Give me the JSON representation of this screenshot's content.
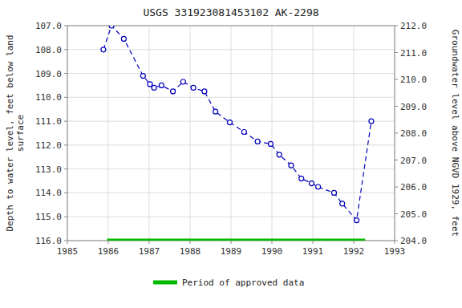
{
  "chart_data": {
    "type": "line",
    "title": "USGS 331923081453102 AK-2298",
    "ylabel": "Depth to water level, feet below land\nsurface",
    "y2label": "Groundwater level above NGVD 1929, feet",
    "xlim": [
      1985,
      1993
    ],
    "xticks": [
      1985,
      1986,
      1987,
      1988,
      1989,
      1990,
      1991,
      1992,
      1993
    ],
    "ylim": [
      116.0,
      107.0
    ],
    "yticks": [
      {
        "value": 107.0,
        "label": "107.0"
      },
      {
        "value": 108.0,
        "label": "108.0"
      },
      {
        "value": 109.0,
        "label": "109.0"
      },
      {
        "value": 110.0,
        "label": "110.0"
      },
      {
        "value": 111.0,
        "label": "111.0"
      },
      {
        "value": 112.0,
        "label": "112.0"
      },
      {
        "value": 113.0,
        "label": "113.0"
      },
      {
        "value": 114.0,
        "label": "114.0"
      },
      {
        "value": 115.0,
        "label": "115.0"
      },
      {
        "value": 116.0,
        "label": "116.0"
      }
    ],
    "y2lim": [
      204.0,
      212.0
    ],
    "y2ticks": [
      {
        "value": 212.0,
        "label": "212.0"
      },
      {
        "value": 211.0,
        "label": "211.0"
      },
      {
        "value": 210.0,
        "label": "210.0"
      },
      {
        "value": 209.0,
        "label": "209.0"
      },
      {
        "value": 208.0,
        "label": "208.0"
      },
      {
        "value": 207.0,
        "label": "207.0"
      },
      {
        "value": 206.0,
        "label": "206.0"
      },
      {
        "value": 205.0,
        "label": "205.0"
      },
      {
        "value": 204.0,
        "label": "204.0"
      }
    ],
    "grid": true,
    "legend": "bottom",
    "series": [
      {
        "color": "#0000bb",
        "line_style": "dashed",
        "marker": "circle",
        "x": [
          1985.88,
          1986.08,
          1986.38,
          1986.85,
          1987.02,
          1987.12,
          1987.3,
          1987.58,
          1987.83,
          1988.08,
          1988.35,
          1988.62,
          1988.97,
          1989.32,
          1989.65,
          1989.97,
          1990.18,
          1990.47,
          1990.72,
          1990.97,
          1991.13,
          1991.52,
          1991.72,
          1992.07,
          1992.43
        ],
        "values": [
          108.0,
          107.0,
          107.55,
          109.1,
          109.45,
          109.6,
          109.5,
          109.75,
          109.35,
          109.6,
          109.75,
          110.6,
          111.05,
          111.45,
          111.85,
          111.95,
          112.4,
          112.85,
          113.4,
          113.6,
          113.75,
          114.0,
          114.45,
          115.15,
          111.0
        ]
      },
      {
        "name": "Period of approved data",
        "color": "#00bb00",
        "line_style": "solid",
        "marker": "none",
        "x": [
          1985.97,
          1992.28
        ],
        "values": [
          116.0,
          116.0
        ]
      }
    ]
  }
}
